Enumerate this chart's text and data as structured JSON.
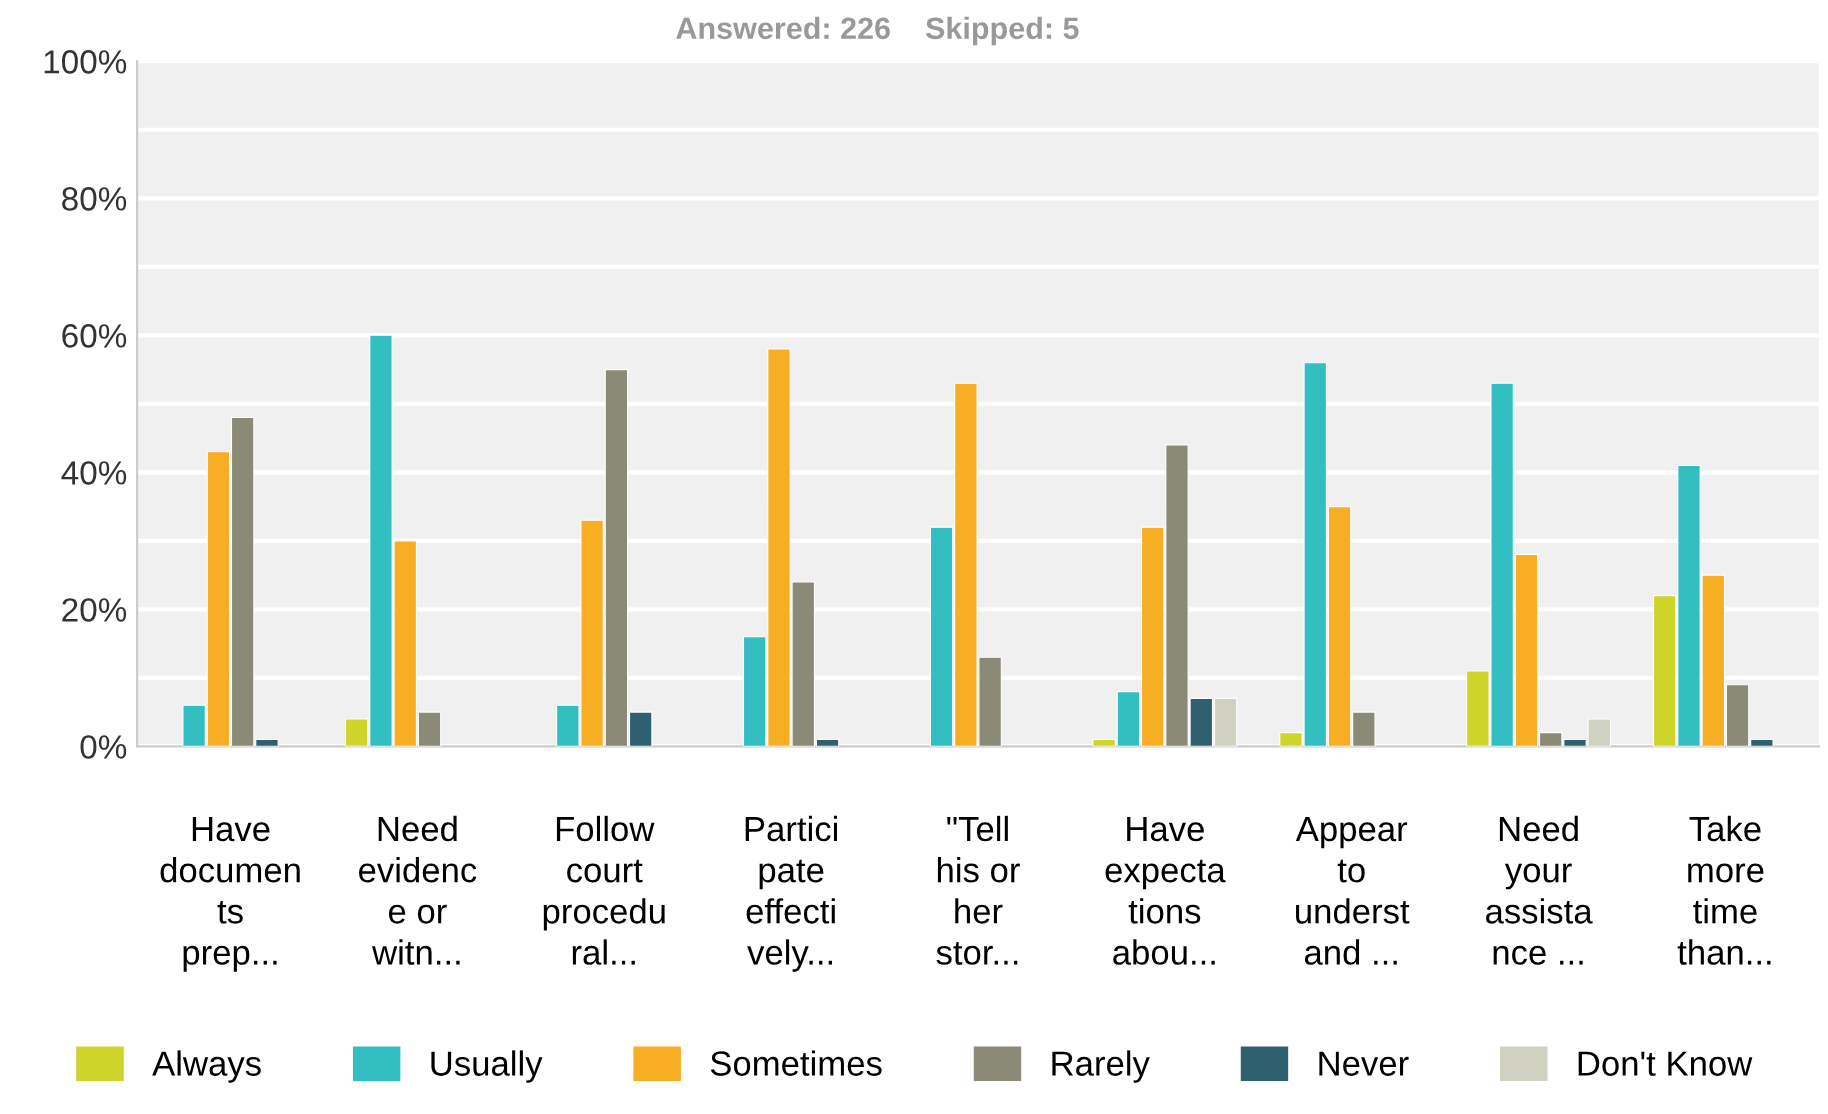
{
  "chart_data": {
    "type": "bar",
    "title": "Answered: 226    Skipped: 5",
    "categories": [
      "Have\ndocumen\nts\nprep...",
      "Need\nevidenc\ne or\nwitn...",
      "Follow\ncourt\nprocedu\nral...",
      "Partici\npate\neffecti\nvely...",
      "\"Tell\nhis or\nher\nstor...",
      "Have\nexpecta\ntions\nabou...",
      "Appear\nto\nunderst\nand ...",
      "Need\nyour\nassista\nnce ...",
      "Take\nmore\ntime\nthan..."
    ],
    "series": [
      {
        "name": "Always",
        "color": "#cfd42a",
        "values": [
          null,
          4,
          null,
          null,
          null,
          1,
          2,
          11,
          22
        ]
      },
      {
        "name": "Usually",
        "color": "#33bec2",
        "values": [
          6,
          60,
          6,
          16,
          32,
          8,
          56,
          53,
          41
        ]
      },
      {
        "name": "Sometimes",
        "color": "#f7ae22",
        "values": [
          43,
          30,
          33,
          58,
          53,
          32,
          35,
          28,
          25
        ]
      },
      {
        "name": "Rarely",
        "color": "#8a8a77",
        "values": [
          48,
          5,
          55,
          24,
          13,
          44,
          5,
          2,
          9
        ]
      },
      {
        "name": "Never",
        "color": "#2e6070",
        "values": [
          1,
          null,
          5,
          1,
          null,
          7,
          null,
          1,
          1
        ]
      },
      {
        "name": "Don't Know",
        "color": "#d1d1c1",
        "values": [
          null,
          null,
          null,
          null,
          null,
          7,
          null,
          4,
          null
        ]
      }
    ],
    "ylim": [
      0,
      100
    ],
    "yticks": [
      {
        "value": 0,
        "label": "0%"
      },
      {
        "value": 10,
        "label": null
      },
      {
        "value": 20,
        "label": "20%"
      },
      {
        "value": 30,
        "label": null
      },
      {
        "value": 40,
        "label": "40%"
      },
      {
        "value": 50,
        "label": null
      },
      {
        "value": 60,
        "label": "60%"
      },
      {
        "value": 70,
        "label": null
      },
      {
        "value": 80,
        "label": "80%"
      },
      {
        "value": 90,
        "label": null
      },
      {
        "value": 100,
        "label": "100%"
      }
    ],
    "grid": "y",
    "legend": "bottom"
  }
}
